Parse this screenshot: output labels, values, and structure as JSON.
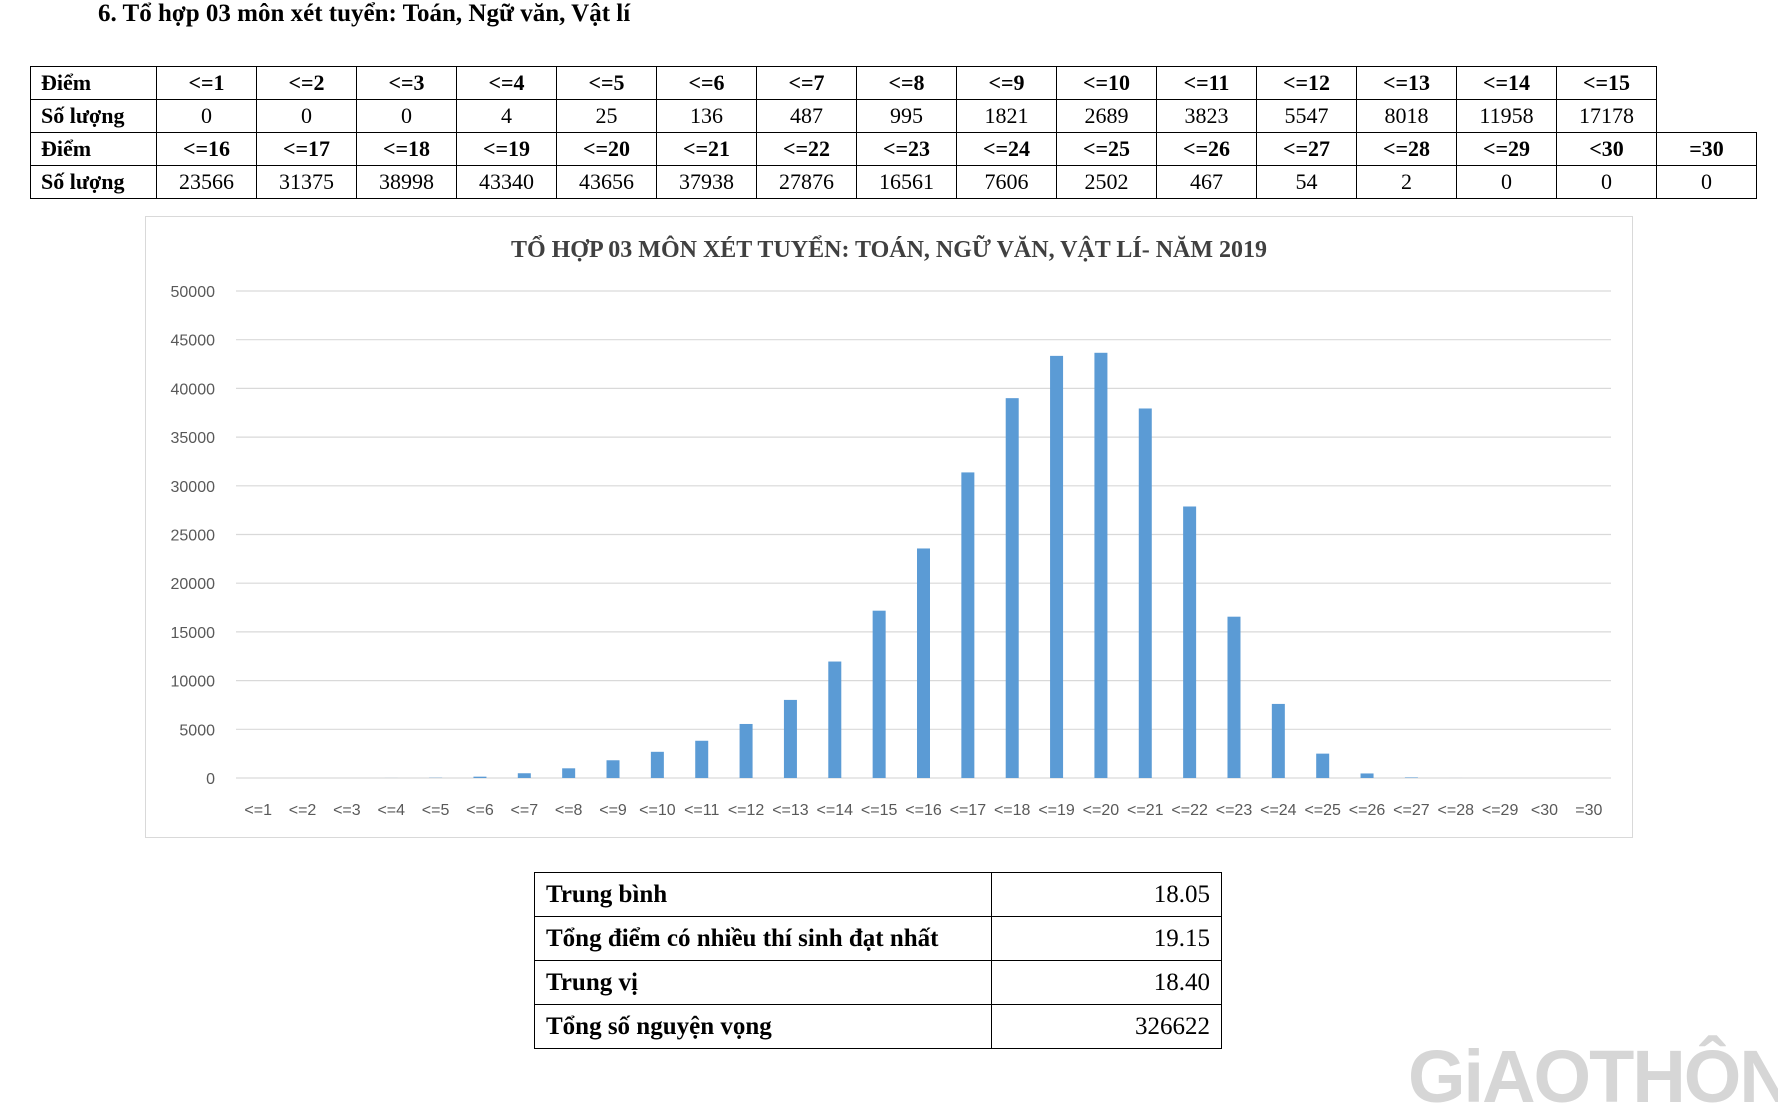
{
  "heading": "6. Tổ hợp 03 môn xét tuyển: Toán, Ngữ văn, Vật lí",
  "dist_table": {
    "row_label_score": "Điểm",
    "row_label_count": "Số lượng",
    "block1": {
      "scores": [
        "<=1",
        "<=2",
        "<=3",
        "<=4",
        "<=5",
        "<=6",
        "<=7",
        "<=8",
        "<=9",
        "<=10",
        "<=11",
        "<=12",
        "<=13",
        "<=14",
        "<=15"
      ],
      "counts": [
        "0",
        "0",
        "0",
        "4",
        "25",
        "136",
        "487",
        "995",
        "1821",
        "2689",
        "3823",
        "5547",
        "8018",
        "11958",
        "17178"
      ]
    },
    "block2": {
      "scores": [
        "<=16",
        "<=17",
        "<=18",
        "<=19",
        "<=20",
        "<=21",
        "<=22",
        "<=23",
        "<=24",
        "<=25",
        "<=26",
        "<=27",
        "<=28",
        "<=29",
        "<30",
        "=30"
      ],
      "counts": [
        "23566",
        "31375",
        "38998",
        "43340",
        "43656",
        "37938",
        "27876",
        "16561",
        "7606",
        "2502",
        "467",
        "54",
        "2",
        "0",
        "0",
        "0"
      ]
    }
  },
  "chart_data": {
    "type": "bar",
    "title": "TỔ HỢP 03 MÔN XÉT TUYỂN: TOÁN, NGỮ VĂN, VẬT LÍ- NĂM 2019",
    "xlabel": "",
    "ylabel": "",
    "categories": [
      "<=1",
      "<=2",
      "<=3",
      "<=4",
      "<=5",
      "<=6",
      "<=7",
      "<=8",
      "<=9",
      "<=10",
      "<=11",
      "<=12",
      "<=13",
      "<=14",
      "<=15",
      "<=16",
      "<=17",
      "<=18",
      "<=19",
      "<=20",
      "<=21",
      "<=22",
      "<=23",
      "<=24",
      "<=25",
      "<=26",
      "<=27",
      "<=28",
      "<=29",
      "<30",
      "=30"
    ],
    "values": [
      0,
      0,
      0,
      4,
      25,
      136,
      487,
      995,
      1821,
      2689,
      3823,
      5547,
      8018,
      11958,
      17178,
      23566,
      31375,
      38998,
      43340,
      43656,
      37938,
      27876,
      16561,
      7606,
      2502,
      467,
      54,
      2,
      0,
      0,
      0
    ],
    "ylim": [
      0,
      50000
    ],
    "yticks": [
      0,
      5000,
      10000,
      15000,
      20000,
      25000,
      30000,
      35000,
      40000,
      45000,
      50000
    ],
    "grid": true,
    "bar_color": "#5b9bd5",
    "grid_color": "#d9d9d9",
    "tick_label_color": "#595959",
    "title_color": "#404040"
  },
  "stats": [
    {
      "label": "Trung bình",
      "value": "18.05"
    },
    {
      "label": "Tổng điểm có nhiều thí sinh đạt nhất",
      "value": "19.15"
    },
    {
      "label": "Trung vị",
      "value": "18.40"
    },
    {
      "label": "Tổng số nguyện vọng",
      "value": "326622"
    }
  ],
  "watermark": "GiAOTHÔNG"
}
